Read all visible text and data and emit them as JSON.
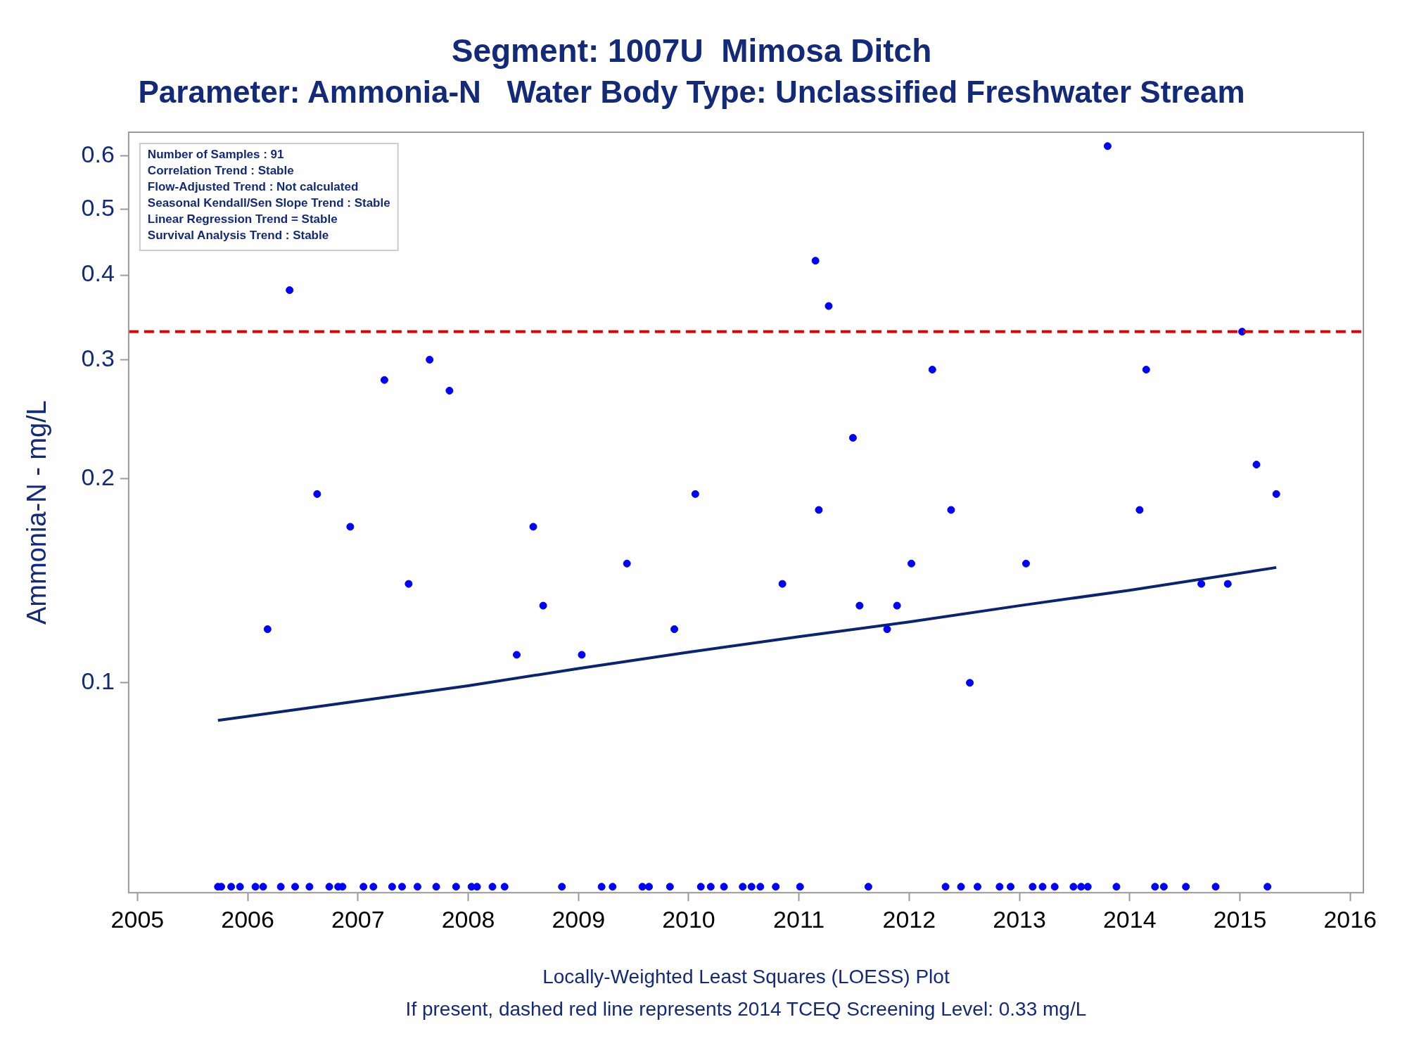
{
  "chart_data": {
    "type": "scatter",
    "title": "Segment: 1007U  Mimosa Ditch",
    "subtitle": "Parameter: Ammonia-N   Water Body Type: Unclassified Freshwater Stream",
    "xlabel": "Locally-Weighted Least Squares (LOESS) Plot",
    "ylabel": "Ammonia-N - mg/L",
    "annotations": [
      "Number of Samples : 91",
      "Correlation Trend : Stable",
      "Flow-Adjusted Trend : Not calculated",
      "Seasonal Kendall/Sen Slope Trend : Stable",
      "Linear Regression Trend = Stable",
      "Survival Analysis Trend : Stable",
      "If present, dashed red line represents 2014 TCEQ Screening Level: 0.33 mg/L"
    ],
    "log": "y",
    "grid": false,
    "legend": false,
    "marker": "circle",
    "xlim": [
      2004.92,
      2016.12
    ],
    "xticks": [
      2005,
      2006,
      2007,
      2008,
      2009,
      2010,
      2011,
      2012,
      2013,
      2014,
      2015,
      2016
    ],
    "ylim": [
      0.049,
      0.65
    ],
    "yticks": [
      0.1,
      0.2,
      0.3,
      0.4,
      0.5,
      0.6
    ],
    "ref_lines": [
      {
        "axis": "y",
        "value": 0.33,
        "label": null,
        "color": "#dd0000",
        "line_style": "dashed"
      }
    ],
    "series": [
      {
        "color": "#0000ff",
        "x": [
          2005.73,
          2005.76,
          2005.85,
          2005.93,
          2006.07,
          2006.14,
          2006.18,
          2006.3,
          2006.38,
          2006.43,
          2006.56,
          2006.63,
          2006.74,
          2006.82,
          2006.86,
          2006.93,
          2007.05,
          2007.14,
          2007.24,
          2007.31,
          2007.4,
          2007.46,
          2007.54,
          2007.65,
          2007.71,
          2007.83,
          2007.89,
          2008.03,
          2008.08,
          2008.22,
          2008.33,
          2008.44,
          2008.59,
          2008.68,
          2008.85,
          2009.03,
          2009.21,
          2009.31,
          2009.44,
          2009.58,
          2009.64,
          2009.83,
          2009.87,
          2010.06,
          2010.11,
          2010.2,
          2010.32,
          2010.49,
          2010.57,
          2010.65,
          2010.79,
          2010.85,
          2011.01,
          2011.15,
          2011.18,
          2011.27,
          2011.49,
          2011.55,
          2011.63,
          2011.8,
          2011.89,
          2012.02,
          2012.21,
          2012.33,
          2012.38,
          2012.47,
          2012.55,
          2012.62,
          2012.82,
          2012.92,
          2013.06,
          2013.12,
          2013.21,
          2013.32,
          2013.49,
          2013.56,
          2013.62,
          2013.8,
          2013.88,
          2014.09,
          2014.15,
          2014.23,
          2014.31,
          2014.51,
          2014.65,
          2014.78,
          2014.89,
          2015.02,
          2015.15,
          2015.25,
          2015.33
        ],
        "values": [
          0.05,
          0.05,
          0.05,
          0.05,
          0.05,
          0.05,
          0.12,
          0.05,
          0.38,
          0.05,
          0.05,
          0.19,
          0.05,
          0.05,
          0.05,
          0.17,
          0.05,
          0.05,
          0.28,
          0.05,
          0.05,
          0.14,
          0.05,
          0.3,
          0.05,
          0.27,
          0.05,
          0.05,
          0.05,
          0.05,
          0.05,
          0.11,
          0.17,
          0.13,
          0.05,
          0.11,
          0.05,
          0.05,
          0.15,
          0.05,
          0.05,
          0.05,
          0.12,
          0.19,
          0.05,
          0.05,
          0.05,
          0.05,
          0.05,
          0.05,
          0.05,
          0.14,
          0.05,
          0.42,
          0.18,
          0.36,
          0.23,
          0.13,
          0.05,
          0.12,
          0.13,
          0.15,
          0.29,
          0.05,
          0.18,
          0.05,
          0.1,
          0.05,
          0.05,
          0.05,
          0.15,
          0.05,
          0.05,
          0.05,
          0.05,
          0.05,
          0.05,
          0.62,
          0.05,
          0.18,
          0.29,
          0.05,
          0.05,
          0.05,
          0.14,
          0.05,
          0.14,
          0.33,
          0.21,
          0.05,
          0.19
        ]
      },
      {
        "type": "line",
        "marker": "none",
        "color": "#0a2472",
        "x": [
          2005.73,
          2007,
          2008,
          2009,
          2010,
          2011,
          2012,
          2013,
          2014,
          2015.33
        ],
        "values": [
          0.088,
          0.094,
          0.099,
          0.105,
          0.111,
          0.117,
          0.123,
          0.13,
          0.137,
          0.148
        ]
      }
    ]
  }
}
